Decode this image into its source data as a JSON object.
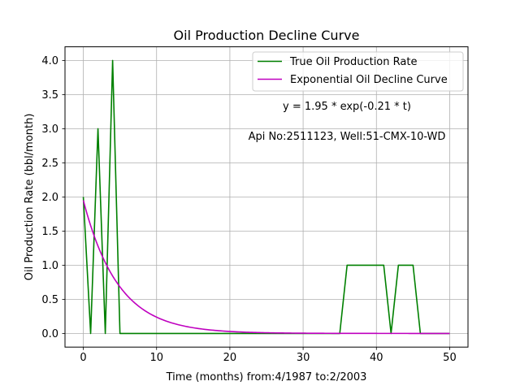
{
  "chart_data": {
    "type": "line",
    "title": "Oil Production Decline Curve",
    "xlabel": "Time (months) from:4/1987 to:2/2003",
    "ylabel": "Oil Production Rate (bbl/month)",
    "xlim": [
      -2.5,
      52.5
    ],
    "ylim": [
      -0.2,
      4.2
    ],
    "xticks": [
      0,
      10,
      20,
      30,
      40,
      50
    ],
    "yticks": [
      0.0,
      0.5,
      1.0,
      1.5,
      2.0,
      2.5,
      3.0,
      3.5,
      4.0
    ],
    "xtick_labels": [
      "0",
      "10",
      "20",
      "30",
      "40",
      "50"
    ],
    "ytick_labels": [
      "0.0",
      "0.5",
      "1.0",
      "1.5",
      "2.0",
      "2.5",
      "3.0",
      "3.5",
      "4.0"
    ],
    "grid": true,
    "legend_position": "upper-right",
    "series": [
      {
        "name": "True Oil Production Rate",
        "color": "#008000",
        "x": [
          0,
          1,
          2,
          3,
          4,
          5,
          6,
          7,
          8,
          9,
          10,
          11,
          12,
          13,
          14,
          15,
          16,
          17,
          18,
          19,
          20,
          21,
          22,
          23,
          24,
          25,
          26,
          27,
          28,
          29,
          30,
          31,
          32,
          33,
          34,
          35,
          36,
          37,
          38,
          39,
          40,
          41,
          42,
          43,
          44,
          45,
          46,
          47,
          48,
          49,
          50
        ],
        "values": [
          2,
          0,
          3,
          0,
          4,
          0,
          0,
          0,
          0,
          0,
          0,
          0,
          0,
          0,
          0,
          0,
          0,
          0,
          0,
          0,
          0,
          0,
          0,
          0,
          0,
          0,
          0,
          0,
          0,
          0,
          0,
          0,
          0,
          0,
          0,
          0,
          1,
          1,
          1,
          1,
          1,
          1,
          0,
          1,
          1,
          1,
          0,
          0,
          0,
          0,
          0
        ]
      },
      {
        "name": "Exponential Oil Decline Curve",
        "color": "#bf00bf",
        "model": {
          "a": 1.95,
          "b": -0.21
        },
        "x_range": [
          0,
          50
        ]
      }
    ],
    "annotations": [
      {
        "id": "equation",
        "text": "y = 1.95 * exp(-0.21 * t)"
      },
      {
        "id": "well",
        "text": "Api No:2511123, Well:51-CMX-10-WD"
      }
    ]
  }
}
